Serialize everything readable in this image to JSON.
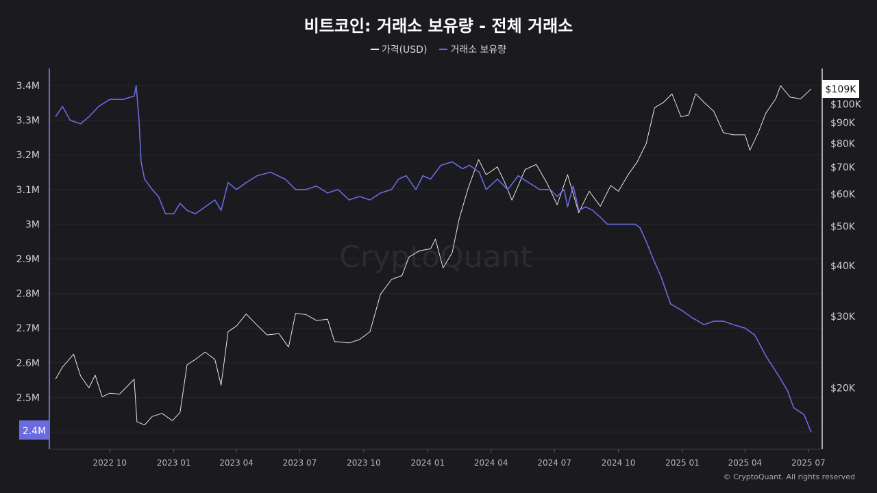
{
  "title": "비트코인: 거래소 보유량 - 전체 거래소",
  "legend": [
    {
      "label": "가격(USD)",
      "color": "#e8e8e8"
    },
    {
      "label": "거래소 보유량",
      "color": "#6b6be0"
    }
  ],
  "watermark": "CryptoQuant",
  "footer": "© CryptoQuant. All rights reserved",
  "chart_data": {
    "type": "line",
    "x_tick_labels": [
      "2022 10",
      "2023 01",
      "2023 04",
      "2023 07",
      "2023 10",
      "2024 01",
      "2024 04",
      "2024 07",
      "2024 10",
      "2025 01",
      "2025 04",
      "2025 07"
    ],
    "left_axis": {
      "tick_labels": [
        "3.4M",
        "3.3M",
        "3.2M",
        "3.1M",
        "3M",
        "2.9M",
        "2.8M",
        "2.7M",
        "2.6M",
        "2.5M",
        "2.4M"
      ],
      "ticks": [
        3.4,
        3.3,
        3.2,
        3.1,
        3.0,
        2.9,
        2.8,
        2.7,
        2.6,
        2.5,
        2.4
      ],
      "range": [
        2.35,
        3.45
      ],
      "current_label": "2.4M"
    },
    "right_axis": {
      "scale": "log",
      "tick_labels": [
        "$100K",
        "$90K",
        "$80K",
        "$70K",
        "$60K",
        "$50K",
        "$40K",
        "$30K",
        "$20K"
      ],
      "ticks": [
        100000,
        90000,
        80000,
        70000,
        60000,
        50000,
        40000,
        30000,
        20000
      ],
      "current_label": "$109K"
    },
    "series": [
      {
        "name": "거래소 보유량",
        "color": "#6b6be0",
        "axis": "left",
        "unit": "M BTC",
        "points": [
          [
            "2022-07-15",
            3.31
          ],
          [
            "2022-07-25",
            3.34
          ],
          [
            "2022-08-05",
            3.3
          ],
          [
            "2022-08-20",
            3.29
          ],
          [
            "2022-09-01",
            3.31
          ],
          [
            "2022-09-15",
            3.34
          ],
          [
            "2022-10-01",
            3.36
          ],
          [
            "2022-10-20",
            3.36
          ],
          [
            "2022-11-05",
            3.37
          ],
          [
            "2022-11-08",
            3.4
          ],
          [
            "2022-11-12",
            3.3
          ],
          [
            "2022-11-15",
            3.18
          ],
          [
            "2022-11-20",
            3.13
          ],
          [
            "2022-12-01",
            3.1
          ],
          [
            "2022-12-10",
            3.08
          ],
          [
            "2022-12-20",
            3.03
          ],
          [
            "2023-01-01",
            3.03
          ],
          [
            "2023-01-10",
            3.06
          ],
          [
            "2023-01-20",
            3.04
          ],
          [
            "2023-02-01",
            3.03
          ],
          [
            "2023-02-15",
            3.05
          ],
          [
            "2023-03-01",
            3.07
          ],
          [
            "2023-03-10",
            3.04
          ],
          [
            "2023-03-20",
            3.12
          ],
          [
            "2023-04-01",
            3.1
          ],
          [
            "2023-04-15",
            3.12
          ],
          [
            "2023-05-01",
            3.14
          ],
          [
            "2023-05-20",
            3.15
          ],
          [
            "2023-06-10",
            3.13
          ],
          [
            "2023-06-25",
            3.1
          ],
          [
            "2023-07-10",
            3.1
          ],
          [
            "2023-07-25",
            3.11
          ],
          [
            "2023-08-10",
            3.09
          ],
          [
            "2023-08-25",
            3.1
          ],
          [
            "2023-09-10",
            3.07
          ],
          [
            "2023-09-25",
            3.08
          ],
          [
            "2023-10-10",
            3.07
          ],
          [
            "2023-10-25",
            3.09
          ],
          [
            "2023-11-10",
            3.1
          ],
          [
            "2023-11-20",
            3.13
          ],
          [
            "2023-12-01",
            3.14
          ],
          [
            "2023-12-15",
            3.1
          ],
          [
            "2023-12-25",
            3.14
          ],
          [
            "2024-01-05",
            3.13
          ],
          [
            "2024-01-20",
            3.17
          ],
          [
            "2024-02-05",
            3.18
          ],
          [
            "2024-02-20",
            3.16
          ],
          [
            "2024-03-01",
            3.17
          ],
          [
            "2024-03-15",
            3.15
          ],
          [
            "2024-03-25",
            3.1
          ],
          [
            "2024-04-10",
            3.13
          ],
          [
            "2024-04-25",
            3.1
          ],
          [
            "2024-05-10",
            3.14
          ],
          [
            "2024-05-25",
            3.12
          ],
          [
            "2024-06-10",
            3.1
          ],
          [
            "2024-06-25",
            3.1
          ],
          [
            "2024-07-05",
            3.08
          ],
          [
            "2024-07-15",
            3.1
          ],
          [
            "2024-07-20",
            3.05
          ],
          [
            "2024-07-28",
            3.11
          ],
          [
            "2024-08-05",
            3.04
          ],
          [
            "2024-08-15",
            3.05
          ],
          [
            "2024-08-25",
            3.04
          ],
          [
            "2024-09-05",
            3.02
          ],
          [
            "2024-09-15",
            3.0
          ],
          [
            "2024-09-30",
            3.0
          ],
          [
            "2024-10-15",
            3.0
          ],
          [
            "2024-10-25",
            3.0
          ],
          [
            "2024-11-01",
            2.99
          ],
          [
            "2024-11-10",
            2.95
          ],
          [
            "2024-11-20",
            2.9
          ],
          [
            "2024-12-01",
            2.85
          ],
          [
            "2024-12-15",
            2.77
          ],
          [
            "2025-01-01",
            2.75
          ],
          [
            "2025-01-15",
            2.73
          ],
          [
            "2025-02-01",
            2.71
          ],
          [
            "2025-02-15",
            2.72
          ],
          [
            "2025-03-01",
            2.72
          ],
          [
            "2025-03-15",
            2.71
          ],
          [
            "2025-04-01",
            2.7
          ],
          [
            "2025-04-15",
            2.68
          ],
          [
            "2025-05-01",
            2.62
          ],
          [
            "2025-05-20",
            2.56
          ],
          [
            "2025-06-01",
            2.52
          ],
          [
            "2025-06-10",
            2.47
          ],
          [
            "2025-06-25",
            2.45
          ],
          [
            "2025-07-05",
            2.4
          ]
        ]
      },
      {
        "name": "가격(USD)",
        "color": "#e8e8e8",
        "axis": "right",
        "unit": "USD",
        "points": [
          [
            "2022-07-15",
            21000
          ],
          [
            "2022-07-25",
            22500
          ],
          [
            "2022-08-10",
            24200
          ],
          [
            "2022-08-20",
            21400
          ],
          [
            "2022-09-01",
            20000
          ],
          [
            "2022-09-10",
            21500
          ],
          [
            "2022-09-20",
            19000
          ],
          [
            "2022-10-01",
            19400
          ],
          [
            "2022-10-15",
            19300
          ],
          [
            "2022-10-30",
            20500
          ],
          [
            "2022-11-05",
            21000
          ],
          [
            "2022-11-09",
            16500
          ],
          [
            "2022-11-20",
            16200
          ],
          [
            "2022-12-01",
            17000
          ],
          [
            "2022-12-15",
            17300
          ],
          [
            "2022-12-30",
            16600
          ],
          [
            "2023-01-10",
            17400
          ],
          [
            "2023-01-20",
            22800
          ],
          [
            "2023-02-01",
            23500
          ],
          [
            "2023-02-15",
            24500
          ],
          [
            "2023-03-01",
            23500
          ],
          [
            "2023-03-10",
            20300
          ],
          [
            "2023-03-20",
            27500
          ],
          [
            "2023-04-01",
            28400
          ],
          [
            "2023-04-15",
            30400
          ],
          [
            "2023-05-01",
            28500
          ],
          [
            "2023-05-15",
            27000
          ],
          [
            "2023-06-01",
            27200
          ],
          [
            "2023-06-15",
            25200
          ],
          [
            "2023-06-25",
            30500
          ],
          [
            "2023-07-10",
            30300
          ],
          [
            "2023-07-25",
            29300
          ],
          [
            "2023-08-10",
            29500
          ],
          [
            "2023-08-20",
            26000
          ],
          [
            "2023-09-10",
            25800
          ],
          [
            "2023-09-25",
            26300
          ],
          [
            "2023-10-10",
            27500
          ],
          [
            "2023-10-25",
            34000
          ],
          [
            "2023-11-10",
            37000
          ],
          [
            "2023-11-25",
            37800
          ],
          [
            "2023-12-05",
            42000
          ],
          [
            "2023-12-20",
            43500
          ],
          [
            "2024-01-05",
            44000
          ],
          [
            "2024-01-12",
            46500
          ],
          [
            "2024-01-23",
            39500
          ],
          [
            "2024-02-05",
            43000
          ],
          [
            "2024-02-15",
            52000
          ],
          [
            "2024-02-28",
            62000
          ],
          [
            "2024-03-14",
            73000
          ],
          [
            "2024-03-25",
            67000
          ],
          [
            "2024-04-10",
            70000
          ],
          [
            "2024-04-20",
            64500
          ],
          [
            "2024-05-01",
            58000
          ],
          [
            "2024-05-20",
            69000
          ],
          [
            "2024-06-05",
            71000
          ],
          [
            "2024-06-20",
            64000
          ],
          [
            "2024-07-05",
            56500
          ],
          [
            "2024-07-20",
            67000
          ],
          [
            "2024-08-05",
            54000
          ],
          [
            "2024-08-20",
            61000
          ],
          [
            "2024-09-05",
            56000
          ],
          [
            "2024-09-20",
            63000
          ],
          [
            "2024-10-01",
            61000
          ],
          [
            "2024-10-15",
            67000
          ],
          [
            "2024-10-28",
            72000
          ],
          [
            "2024-11-10",
            80000
          ],
          [
            "2024-11-22",
            98000
          ],
          [
            "2024-12-05",
            101000
          ],
          [
            "2024-12-17",
            106000
          ],
          [
            "2024-12-30",
            93000
          ],
          [
            "2025-01-10",
            94000
          ],
          [
            "2025-01-20",
            106000
          ],
          [
            "2025-02-01",
            101000
          ],
          [
            "2025-02-15",
            96000
          ],
          [
            "2025-03-01",
            85000
          ],
          [
            "2025-03-15",
            84000
          ],
          [
            "2025-04-01",
            84000
          ],
          [
            "2025-04-08",
            77000
          ],
          [
            "2025-04-20",
            85000
          ],
          [
            "2025-05-01",
            95000
          ],
          [
            "2025-05-15",
            103000
          ],
          [
            "2025-05-22",
            111000
          ],
          [
            "2025-06-05",
            104000
          ],
          [
            "2025-06-20",
            103000
          ],
          [
            "2025-07-05",
            109000
          ]
        ]
      }
    ]
  }
}
